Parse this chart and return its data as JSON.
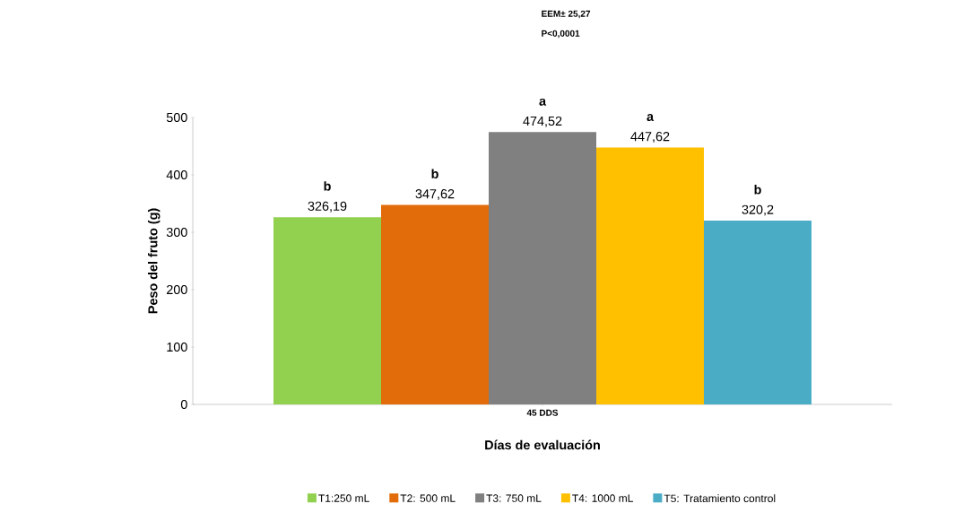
{
  "chart_data": {
    "type": "bar",
    "categories": [
      "45 DDS"
    ],
    "series": [
      {
        "name": "T1:250 mL",
        "color": "#92d050",
        "values": [
          326.19
        ],
        "value_labels": [
          "326,19"
        ]
      },
      {
        "name": "T2: 500 mL",
        "color": "#e36c0a",
        "values": [
          347.62
        ],
        "value_labels": [
          "347,62"
        ]
      },
      {
        "name": "T3: 750 mL",
        "color": "#808080",
        "values": [
          474.52
        ],
        "value_labels": [
          "474,52"
        ]
      },
      {
        "name": "T4: 1000 mL",
        "color": "#ffc000",
        "values": [
          447.62
        ],
        "value_labels": [
          "447,62"
        ]
      },
      {
        "name": "T5: Tratamiento control",
        "color": "#4bacc6",
        "values": [
          320.2
        ],
        "value_labels": [
          "320,2"
        ]
      }
    ],
    "annotations": [
      "b",
      "b",
      "a",
      "a",
      "b",
      "EEM± 25,27",
      "P<0,0001"
    ],
    "xlabel": "Días  de evaluación",
    "ylabel": "Peso del fruto (g)",
    "ylim": [
      0,
      500
    ],
    "yticks": [
      0,
      100,
      200,
      300,
      400,
      500
    ],
    "legend": "bottom",
    "grid": false
  }
}
